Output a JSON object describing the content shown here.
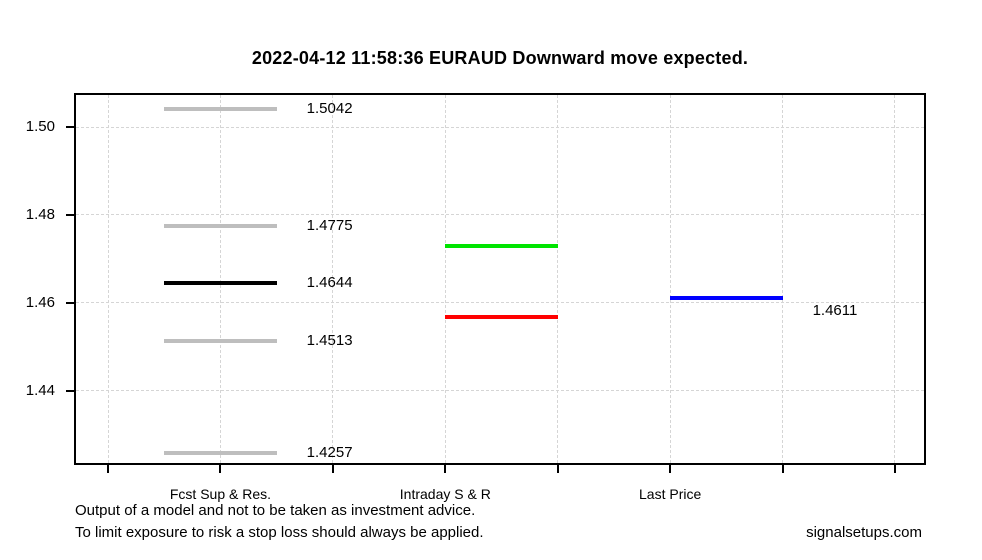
{
  "title": "2022-04-12 11:58:36 EURAUD Downward move expected.",
  "footer": {
    "disclaimer_line1": "Output of a model and not to be taken as investment advice.",
    "disclaimer_line2": "To limit exposure to risk a stop loss should always be applied.",
    "website": "signalsetups.com"
  },
  "colors": {
    "background": "#FFFFFF",
    "axis": "#000000",
    "grid": "#D5D5D5",
    "forecast_level": "#BEBEBE",
    "forecast_pivot": "#000000",
    "intraday_resistance": "#00E400",
    "intraday_support": "#FF0000",
    "last_price": "#0000FF"
  },
  "chart_data": {
    "type": "line",
    "title": "2022-04-12 11:58:36 EURAUD Downward move expected.",
    "grid": true,
    "x_axis": {
      "range": [
        0.715,
        8.258
      ],
      "ticks": [
        1,
        2,
        3,
        4,
        5,
        6,
        7,
        8
      ],
      "category_labels": [
        {
          "tick": 2,
          "label": "Fcst Sup & Res."
        },
        {
          "tick": 4,
          "label": "Intraday S & R"
        },
        {
          "tick": 6,
          "label": "Last Price"
        }
      ]
    },
    "y_axis": {
      "range": [
        1.4235,
        1.5073
      ],
      "ticks": [
        1.44,
        1.46,
        1.48,
        1.5
      ],
      "tick_labels": [
        "1.44",
        "1.46",
        "1.48",
        "1.50"
      ]
    },
    "segments": [
      {
        "series": "Fcst Sup & Res.",
        "x1": 1.5,
        "x2": 2.5,
        "value": 1.5042,
        "label": "1.5042",
        "color": "#BEBEBE",
        "label_dy": 0
      },
      {
        "series": "Fcst Sup & Res.",
        "x1": 1.5,
        "x2": 2.5,
        "value": 1.4775,
        "label": "1.4775",
        "color": "#BEBEBE",
        "label_dy": 0
      },
      {
        "series": "Fcst Sup & Res.",
        "x1": 1.5,
        "x2": 2.5,
        "value": 1.4644,
        "label": "1.4644",
        "color": "#000000",
        "label_dy": 0
      },
      {
        "series": "Fcst Sup & Res.",
        "x1": 1.5,
        "x2": 2.5,
        "value": 1.4513,
        "label": "1.4513",
        "color": "#BEBEBE",
        "label_dy": 0
      },
      {
        "series": "Fcst Sup & Res.",
        "x1": 1.5,
        "x2": 2.5,
        "value": 1.4257,
        "label": "1.4257",
        "color": "#BEBEBE",
        "label_dy": 0
      },
      {
        "series": "Intraday S & R",
        "x1": 4,
        "x2": 5,
        "value": 1.4729,
        "estimated": true,
        "label": "",
        "color": "#00E400",
        "label_dy": 0
      },
      {
        "series": "Intraday S & R",
        "x1": 4,
        "x2": 5,
        "value": 1.4567,
        "estimated": true,
        "label": "",
        "color": "#FF0000",
        "label_dy": 0
      },
      {
        "series": "Last Price",
        "x1": 6,
        "x2": 7,
        "value": 1.4611,
        "label": "1.4611",
        "color": "#0000FF",
        "label_dy": 13
      }
    ]
  }
}
